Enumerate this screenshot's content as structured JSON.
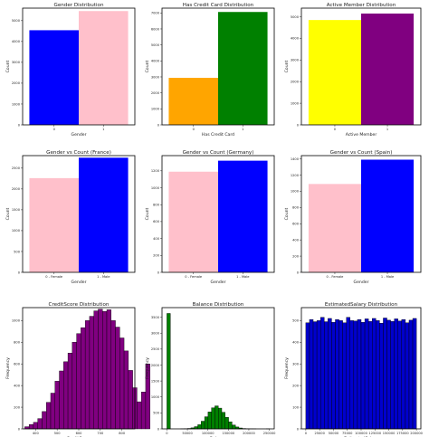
{
  "chart_data": [
    {
      "type": "bar",
      "title": "Gender Distribution",
      "xlabel": "Gender",
      "ylabel": "Count",
      "categories": [
        "0",
        "1"
      ],
      "values": [
        4540,
        5460
      ],
      "colors": [
        "#0000ff",
        "#ffc0cb"
      ],
      "ylim": [
        0,
        5600
      ],
      "yticks": [
        0,
        1000,
        2000,
        3000,
        4000,
        5000
      ]
    },
    {
      "type": "bar",
      "title": "Has Credit Card Distribution",
      "xlabel": "Has Credit Card",
      "ylabel": "Count",
      "categories": [
        "0",
        "1"
      ],
      "values": [
        2940,
        7060
      ],
      "colors": [
        "#ffa500",
        "#008000"
      ],
      "ylim": [
        0,
        7300
      ],
      "yticks": [
        0,
        1000,
        2000,
        3000,
        4000,
        5000,
        6000,
        7000
      ]
    },
    {
      "type": "bar",
      "title": "Active Member Distribution",
      "xlabel": "Active Member",
      "ylabel": "Count",
      "categories": [
        "0",
        "1"
      ],
      "values": [
        4850,
        5150
      ],
      "colors": [
        "#ffff00",
        "#800080"
      ],
      "ylim": [
        0,
        5400
      ],
      "yticks": [
        0,
        1000,
        2000,
        3000,
        4000,
        5000
      ]
    },
    {
      "type": "bar",
      "title": "Gender vs Count (France)",
      "xlabel": "Gender",
      "ylabel": "Count",
      "categories": [
        "0 - Female",
        "1 - Male"
      ],
      "values": [
        2260,
        2750
      ],
      "colors": [
        "#ffc0cb",
        "#0000ff"
      ],
      "ylim": [
        0,
        2800
      ],
      "yticks": [
        0,
        500,
        1000,
        1500,
        2000,
        2500
      ]
    },
    {
      "type": "bar",
      "title": "Gender vs Count (Germany)",
      "xlabel": "Gender",
      "ylabel": "Count",
      "categories": [
        "0 - Female",
        "1 - Male"
      ],
      "values": [
        1190,
        1320
      ],
      "colors": [
        "#ffc0cb",
        "#0000ff"
      ],
      "ylim": [
        0,
        1380
      ],
      "yticks": [
        0,
        200,
        400,
        600,
        800,
        1000,
        1200
      ]
    },
    {
      "type": "bar",
      "title": "Gender vs Count (Spain)",
      "xlabel": "Gender",
      "ylabel": "Count",
      "categories": [
        "0 - Female",
        "1 - Male"
      ],
      "values": [
        1090,
        1390
      ],
      "colors": [
        "#ffc0cb",
        "#0000ff"
      ],
      "ylim": [
        0,
        1440
      ],
      "yticks": [
        0,
        200,
        400,
        600,
        800,
        1000,
        1200,
        1400
      ]
    },
    {
      "type": "histogram",
      "title": "CreditScore Distribution",
      "xlabel": "CreditScore",
      "ylabel": "Frequency",
      "color": "#800080",
      "bin_start": 350,
      "bin_width": 20,
      "values": [
        20,
        40,
        60,
        95,
        160,
        245,
        330,
        440,
        535,
        620,
        700,
        800,
        880,
        935,
        1000,
        1040,
        1090,
        1105,
        1085,
        1100,
        1000,
        940,
        840,
        720,
        540,
        380,
        250,
        340,
        600
      ],
      "xlim": [
        340,
        860
      ],
      "ylim": [
        0,
        1120
      ],
      "xticks": [
        400,
        500,
        600,
        700,
        800
      ],
      "yticks": [
        0,
        200,
        400,
        600,
        800,
        1000
      ]
    },
    {
      "type": "histogram",
      "title": "Balance Distribution",
      "xlabel": "Balance",
      "ylabel": "Frequency",
      "color": "#008000",
      "bin_start": 0,
      "bin_width": 8366,
      "values": [
        3617,
        0,
        0,
        0,
        2,
        6,
        14,
        32,
        70,
        130,
        240,
        380,
        530,
        660,
        720,
        650,
        520,
        360,
        220,
        120,
        60,
        28,
        12,
        5,
        2,
        1,
        0,
        0,
        0,
        1
      ],
      "xlim": [
        -12000,
        262000
      ],
      "ylim": [
        0,
        3800
      ],
      "xticks": [
        0,
        50000,
        100000,
        150000,
        200000,
        250000
      ],
      "yticks": [
        0,
        500,
        1000,
        1500,
        2000,
        2500,
        3000,
        3500
      ]
    },
    {
      "type": "histogram",
      "title": "EstimatedSalary Distribution",
      "xlabel": "EstimatedSalary",
      "ylabel": "Frequency",
      "color": "#0000cd",
      "bin_start": 0,
      "bin_width": 6667,
      "values": [
        490,
        505,
        495,
        500,
        515,
        495,
        510,
        492,
        505,
        500,
        490,
        515,
        500,
        498,
        505,
        492,
        508,
        496,
        510,
        500,
        488,
        512,
        502,
        496,
        508,
        498,
        505,
        490,
        502,
        510
      ],
      "xlim": [
        -8000,
        208000
      ],
      "ylim": [
        0,
        560
      ],
      "xticks": [
        0,
        25000,
        50000,
        75000,
        100000,
        125000,
        150000,
        175000,
        200000
      ],
      "yticks": [
        0,
        100,
        200,
        300,
        400,
        500
      ]
    }
  ]
}
